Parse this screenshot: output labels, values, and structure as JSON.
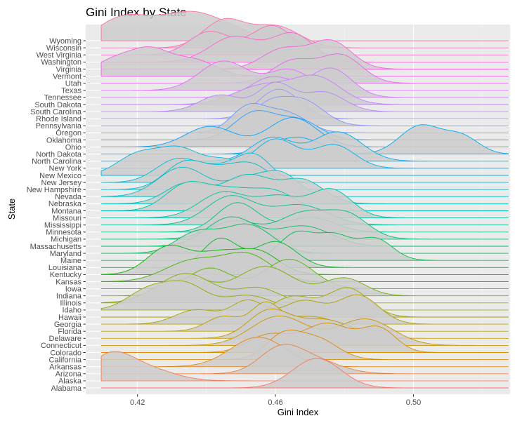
{
  "chart_data": {
    "type": "ridgeline",
    "title": "Gini Index by State",
    "xlabel": "Gini Index",
    "ylabel": "State",
    "xlim": [
      0.405,
      0.528
    ],
    "x_ticks": [
      0.42,
      0.46,
      0.5
    ],
    "x_tick_labels": [
      "0.42",
      "0.46",
      "0.50"
    ],
    "grid": true,
    "legend": "none",
    "panel_background": "#ebebeb",
    "ridge_fill": "#cccccc",
    "categories": [
      "Alabama",
      "Alaska",
      "Arizona",
      "Arkansas",
      "California",
      "Colorado",
      "Connecticut",
      "Delaware",
      "Florida",
      "Georgia",
      "Hawaii",
      "Idaho",
      "Illinois",
      "Indiana",
      "Iowa",
      "Kansas",
      "Kentucky",
      "Louisiana",
      "Maine",
      "Maryland",
      "Massachusetts",
      "Michigan",
      "Minnesota",
      "Mississippi",
      "Missouri",
      "Montana",
      "Nebraska",
      "Nevada",
      "New Hampshire",
      "New Jersey",
      "New Mexico",
      "New York",
      "North Carolina",
      "North Dakota",
      "Ohio",
      "Oklahoma",
      "Oregon",
      "Pennsylvania",
      "Rhode Island",
      "South Carolina",
      "South Dakota",
      "Tennessee",
      "Texas",
      "Utah",
      "Vermont",
      "Virginia",
      "Washington",
      "West Virginia",
      "Wisconsin",
      "Wyoming"
    ],
    "series": [
      {
        "values": [
          [
            0.472,
            0.007,
            1.0
          ]
        ],
        "color": "#F8766D"
      },
      {
        "values": [
          [
            0.412,
            0.006,
            0.9
          ],
          [
            0.422,
            0.008,
            0.5
          ]
        ],
        "color": "#F37B59"
      },
      {
        "values": [
          [
            0.461,
            0.006,
            1.0
          ],
          [
            0.47,
            0.008,
            0.7
          ]
        ],
        "color": "#ED813E"
      },
      {
        "values": [
          [
            0.455,
            0.008,
            1.0
          ]
        ],
        "color": "#E7861B"
      },
      {
        "values": [
          [
            0.462,
            0.005,
            1.0
          ],
          [
            0.472,
            0.006,
            0.9
          ]
        ],
        "color": "#DF8B00"
      },
      {
        "values": [
          [
            0.458,
            0.006,
            0.6
          ],
          [
            0.475,
            0.007,
            1.0
          ],
          [
            0.49,
            0.005,
            0.8
          ]
        ],
        "color": "#D89000"
      },
      {
        "values": [
          [
            0.461,
            0.008,
            1.0
          ],
          [
            0.486,
            0.008,
            0.9
          ]
        ],
        "color": "#CF9400"
      },
      {
        "values": [
          [
            0.458,
            0.006,
            1.0
          ],
          [
            0.474,
            0.008,
            0.7
          ]
        ],
        "color": "#C59900"
      },
      {
        "values": [
          [
            0.445,
            0.005,
            0.6
          ],
          [
            0.457,
            0.004,
            1.0
          ],
          [
            0.47,
            0.008,
            0.6
          ]
        ],
        "color": "#BB9D00"
      },
      {
        "values": [
          [
            0.437,
            0.006,
            0.5
          ],
          [
            0.452,
            0.005,
            0.8
          ],
          [
            0.468,
            0.006,
            0.8
          ],
          [
            0.484,
            0.006,
            1.0
          ]
        ],
        "color": "#B0A100"
      },
      {
        "values": [
          [
            0.465,
            0.006,
            0.7
          ],
          [
            0.481,
            0.006,
            1.0
          ]
        ],
        "color": "#A3A500"
      },
      {
        "values": [
          [
            0.423,
            0.006,
            0.8
          ],
          [
            0.434,
            0.006,
            1.0
          ],
          [
            0.452,
            0.007,
            0.6
          ]
        ],
        "color": "#96A900"
      },
      {
        "values": [
          [
            0.434,
            0.008,
            1.0
          ],
          [
            0.455,
            0.006,
            0.5
          ]
        ],
        "color": "#87AC00"
      },
      {
        "values": [
          [
            0.435,
            0.006,
            0.6
          ],
          [
            0.457,
            0.008,
            1.0
          ],
          [
            0.48,
            0.006,
            0.6
          ]
        ],
        "color": "#75AF00"
      },
      {
        "values": [
          [
            0.441,
            0.006,
            0.7
          ],
          [
            0.464,
            0.007,
            1.0
          ]
        ],
        "color": "#5FB200"
      },
      {
        "values": [
          [
            0.436,
            0.008,
            0.8
          ],
          [
            0.452,
            0.007,
            1.0
          ]
        ],
        "color": "#40B500"
      },
      {
        "values": [
          [
            0.429,
            0.006,
            1.0
          ],
          [
            0.443,
            0.006,
            0.7
          ],
          [
            0.455,
            0.006,
            0.8
          ]
        ],
        "color": "#00B700"
      },
      {
        "values": [
          [
            0.444,
            0.005,
            1.0
          ],
          [
            0.46,
            0.006,
            0.9
          ]
        ],
        "color": "#00B92B"
      },
      {
        "values": [
          [
            0.466,
            0.005,
            1.0
          ],
          [
            0.477,
            0.005,
            0.9
          ],
          [
            0.489,
            0.005,
            0.8
          ]
        ],
        "color": "#00BB45"
      },
      {
        "values": [
          [
            0.437,
            0.006,
            0.7
          ],
          [
            0.452,
            0.007,
            1.0
          ]
        ],
        "color": "#00BC58"
      },
      {
        "values": [
          [
            0.447,
            0.007,
            1.0
          ],
          [
            0.468,
            0.008,
            0.7
          ]
        ],
        "color": "#00BE69"
      },
      {
        "values": [
          [
            0.448,
            0.007,
            0.7
          ],
          [
            0.468,
            0.007,
            1.0
          ],
          [
            0.481,
            0.006,
            0.9
          ]
        ],
        "color": "#00BF78"
      },
      {
        "values": [
          [
            0.449,
            0.006,
            1.0
          ],
          [
            0.47,
            0.007,
            0.5
          ]
        ],
        "color": "#00BF86"
      },
      {
        "values": [
          [
            0.447,
            0.007,
            1.0
          ],
          [
            0.467,
            0.008,
            0.7
          ]
        ],
        "color": "#00C094"
      },
      {
        "values": [
          [
            0.445,
            0.007,
            0.9
          ],
          [
            0.461,
            0.006,
            0.7
          ],
          [
            0.476,
            0.006,
            1.0
          ]
        ],
        "color": "#00C0A1"
      },
      {
        "values": [
          [
            0.434,
            0.006,
            1.0
          ],
          [
            0.447,
            0.007,
            0.8
          ],
          [
            0.46,
            0.006,
            0.7
          ]
        ],
        "color": "#00C0AE"
      },
      {
        "values": [
          [
            0.434,
            0.006,
            0.7
          ],
          [
            0.452,
            0.007,
            1.0
          ],
          [
            0.468,
            0.006,
            0.8
          ]
        ],
        "color": "#00BFBA"
      },
      {
        "values": [
          [
            0.433,
            0.007,
            1.0
          ],
          [
            0.452,
            0.006,
            0.6
          ],
          [
            0.462,
            0.005,
            0.7
          ]
        ],
        "color": "#00BDC5"
      },
      {
        "values": [
          [
            0.434,
            0.006,
            1.0
          ],
          [
            0.447,
            0.006,
            0.7
          ],
          [
            0.455,
            0.005,
            0.6
          ]
        ],
        "color": "#00BBD0"
      },
      {
        "values": [
          [
            0.431,
            0.006,
            0.9
          ],
          [
            0.444,
            0.007,
            0.6
          ],
          [
            0.454,
            0.005,
            1.0
          ]
        ],
        "color": "#00B9DA"
      },
      {
        "values": [
          [
            0.42,
            0.006,
            0.8
          ],
          [
            0.432,
            0.006,
            1.0
          ],
          [
            0.446,
            0.006,
            0.6
          ]
        ],
        "color": "#00B5E3"
      },
      {
        "values": [
          [
            0.46,
            0.006,
            1.0
          ],
          [
            0.477,
            0.006,
            0.8
          ]
        ],
        "color": "#00B2EC"
      },
      {
        "values": [
          [
            0.459,
            0.006,
            0.8
          ],
          [
            0.478,
            0.007,
            1.0
          ]
        ],
        "color": "#00AEF4"
      },
      {
        "values": [
          [
            0.466,
            0.007,
            0.6
          ],
          [
            0.502,
            0.006,
            1.0
          ],
          [
            0.514,
            0.005,
            0.6
          ]
        ],
        "color": "#00A9FA"
      },
      {
        "values": [
          [
            0.441,
            0.007,
            0.7
          ],
          [
            0.465,
            0.007,
            1.0
          ]
        ],
        "color": "#00A4FF"
      },
      {
        "values": [
          [
            0.454,
            0.006,
            1.0
          ],
          [
            0.467,
            0.006,
            0.7
          ]
        ],
        "color": "#2C9FFF"
      },
      {
        "values": [
          [
            0.452,
            0.005,
            1.0
          ],
          [
            0.463,
            0.006,
            0.8
          ]
        ],
        "color": "#6699FF"
      },
      {
        "values": [
          [
            0.458,
            0.005,
            0.8
          ],
          [
            0.468,
            0.006,
            1.0
          ]
        ],
        "color": "#8894FF"
      },
      {
        "values": [
          [
            0.461,
            0.006,
            1.0
          ]
        ],
        "color": "#A38DFF"
      },
      {
        "values": [
          [
            0.444,
            0.006,
            0.6
          ],
          [
            0.46,
            0.005,
            1.0
          ],
          [
            0.474,
            0.006,
            0.7
          ]
        ],
        "color": "#B786FF"
      },
      {
        "values": [
          [
            0.456,
            0.008,
            0.7
          ],
          [
            0.472,
            0.007,
            1.0
          ]
        ],
        "color": "#C77FFF"
      },
      {
        "values": [
          [
            0.459,
            0.006,
            0.7
          ],
          [
            0.476,
            0.006,
            1.0
          ]
        ],
        "color": "#D576FF"
      },
      {
        "values": [
          [
            0.445,
            0.007,
            1.0
          ],
          [
            0.464,
            0.006,
            0.7
          ]
        ],
        "color": "#E06EF9"
      },
      {
        "values": [
          [
            0.465,
            0.006,
            0.8
          ],
          [
            0.479,
            0.006,
            1.0
          ]
        ],
        "color": "#E966EF"
      },
      {
        "values": [
          [
            0.413,
            0.006,
            0.6
          ],
          [
            0.424,
            0.006,
            1.0
          ],
          [
            0.437,
            0.006,
            0.6
          ]
        ],
        "color": "#F063E5"
      },
      {
        "values": [
          [
            0.462,
            0.006,
            0.7
          ],
          [
            0.476,
            0.006,
            1.0
          ]
        ],
        "color": "#F564DA"
      },
      {
        "values": [
          [
            0.448,
            0.007,
            0.9
          ],
          [
            0.465,
            0.006,
            1.0
          ]
        ],
        "color": "#F967CE"
      },
      {
        "values": [
          [
            0.441,
            0.006,
            0.8
          ],
          [
            0.459,
            0.006,
            1.0
          ]
        ],
        "color": "#FC6CC0"
      },
      {
        "values": [
          [
            0.445,
            0.006,
            1.0
          ],
          [
            0.46,
            0.007,
            0.8
          ]
        ],
        "color": "#FE71B2"
      },
      {
        "values": [
          [
            0.416,
            0.007,
            1.0
          ],
          [
            0.428,
            0.006,
            0.6
          ],
          [
            0.437,
            0.006,
            0.9
          ],
          [
            0.447,
            0.006,
            0.5
          ]
        ],
        "color": "#FD71A3"
      }
    ]
  }
}
